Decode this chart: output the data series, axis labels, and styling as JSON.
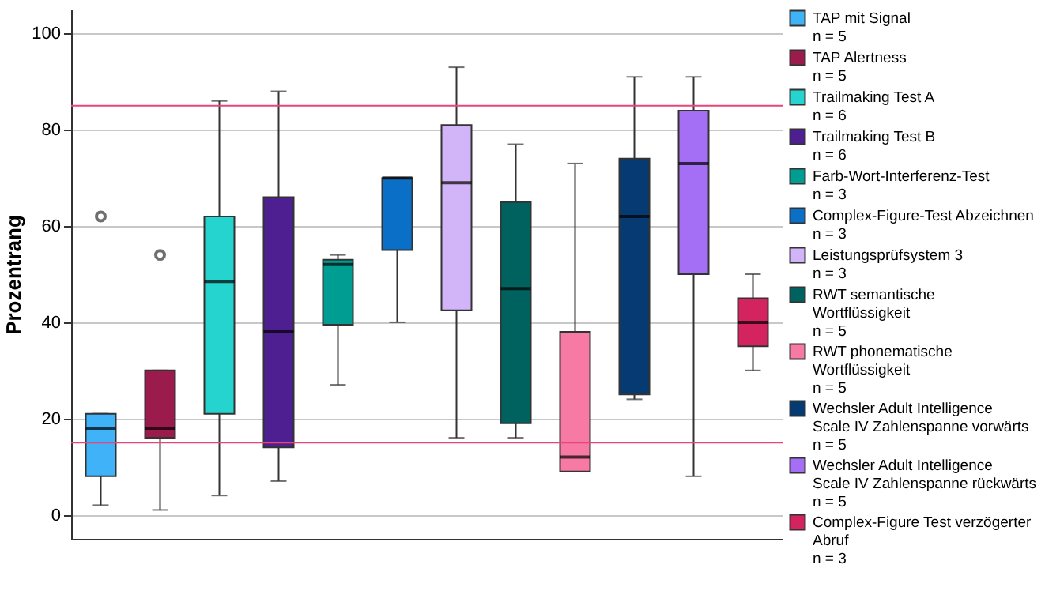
{
  "chart_data": {
    "type": "box",
    "ylabel": "Prozentrang",
    "categories": [
      null,
      null,
      null,
      null,
      null,
      null,
      null,
      null,
      null,
      null,
      null,
      null
    ],
    "ylim": [
      -5,
      105
    ],
    "yticks": [
      0,
      20,
      40,
      60,
      80,
      100
    ],
    "grid": "y",
    "legend": "right",
    "tick_labels": "y",
    "ref_lines": [
      {
        "axis": "y",
        "value": 85,
        "color": "#e8457a"
      },
      {
        "axis": "y",
        "value": 15,
        "color": "#e8457a"
      }
    ],
    "series": [
      {
        "name": "TAP mit Signal\nn = 5",
        "color": "#3fb2f8",
        "boxes": [
          {
            "low": 2,
            "q1": 8,
            "median": 18,
            "q3": 21,
            "high": 21,
            "outliers": [
              62
            ]
          },
          null,
          null,
          null,
          null,
          null,
          null,
          null,
          null,
          null,
          null,
          null
        ]
      },
      {
        "name": "TAP Alertness\nn = 5",
        "color": "#9b1b4c",
        "boxes": [
          null,
          {
            "low": 1,
            "q1": 16,
            "median": 18,
            "q3": 30,
            "high": 30,
            "outliers": [
              54
            ]
          },
          null,
          null,
          null,
          null,
          null,
          null,
          null,
          null,
          null,
          null
        ]
      },
      {
        "name": "Trailmaking Test A\nn = 6",
        "color": "#25d4cf",
        "boxes": [
          null,
          null,
          {
            "low": 4,
            "q1": 21,
            "median": 48.5,
            "q3": 62,
            "high": 86
          },
          null,
          null,
          null,
          null,
          null,
          null,
          null,
          null,
          null
        ]
      },
      {
        "name": "Trailmaking Test B\nn = 6",
        "color": "#4e1f91",
        "boxes": [
          null,
          null,
          null,
          {
            "low": 7,
            "q1": 14,
            "median": 38,
            "q3": 66,
            "high": 88
          },
          null,
          null,
          null,
          null,
          null,
          null,
          null,
          null
        ]
      },
      {
        "name": "Farb-Wort-Interferenz-Test\nn = 3",
        "color": "#009e92",
        "boxes": [
          null,
          null,
          null,
          null,
          {
            "low": 27,
            "q1": 39.5,
            "median": 52,
            "q3": 53,
            "high": 54
          },
          null,
          null,
          null,
          null,
          null,
          null,
          null
        ]
      },
      {
        "name": "Complex-Figure-Test Abzeichnen\nn = 3",
        "color": "#0a6fc7",
        "boxes": [
          null,
          null,
          null,
          null,
          null,
          {
            "low": 40,
            "q1": 55,
            "median": 70,
            "q3": 70,
            "high": 70
          },
          null,
          null,
          null,
          null,
          null,
          null
        ]
      },
      {
        "name": "Leistungsprüfsystem 3\nn = 3",
        "color": "#d2b4f8",
        "boxes": [
          null,
          null,
          null,
          null,
          null,
          null,
          {
            "low": 16,
            "q1": 42.5,
            "median": 69,
            "q3": 81,
            "high": 93
          },
          null,
          null,
          null,
          null,
          null
        ]
      },
      {
        "name": "RWT semantische\nWortflüssigkeit\nn = 5",
        "color": "#00625e",
        "boxes": [
          null,
          null,
          null,
          null,
          null,
          null,
          null,
          {
            "low": 16,
            "q1": 19,
            "median": 47,
            "q3": 65,
            "high": 77
          },
          null,
          null,
          null,
          null
        ]
      },
      {
        "name": "RWT phonematische\nWortflüssigkeit\nn = 5",
        "color": "#f77aa4",
        "boxes": [
          null,
          null,
          null,
          null,
          null,
          null,
          null,
          null,
          {
            "low": 9,
            "q1": 9,
            "median": 12,
            "q3": 38,
            "high": 73
          },
          null,
          null,
          null
        ]
      },
      {
        "name": "Wechsler Adult Intelligence\nScale IV Zahlenspanne vorwärts\nn = 5",
        "color": "#053a73",
        "boxes": [
          null,
          null,
          null,
          null,
          null,
          null,
          null,
          null,
          null,
          {
            "low": 24,
            "q1": 25,
            "median": 62,
            "q3": 74,
            "high": 91
          },
          null,
          null
        ]
      },
      {
        "name": "Wechsler Adult Intelligence\nScale IV Zahlenspanne rückwärts\nn = 5",
        "color": "#a46ef5",
        "boxes": [
          null,
          null,
          null,
          null,
          null,
          null,
          null,
          null,
          null,
          null,
          {
            "low": 8,
            "q1": 50,
            "median": 73,
            "q3": 84,
            "high": 91
          },
          null
        ]
      },
      {
        "name": "Complex-Figure Test verzögerter\nAbruf\nn = 3",
        "color": "#d4245f",
        "boxes": [
          null,
          null,
          null,
          null,
          null,
          null,
          null,
          null,
          null,
          null,
          null,
          {
            "low": 30,
            "q1": 35,
            "median": 40,
            "q3": 45,
            "high": 50
          }
        ]
      }
    ]
  }
}
